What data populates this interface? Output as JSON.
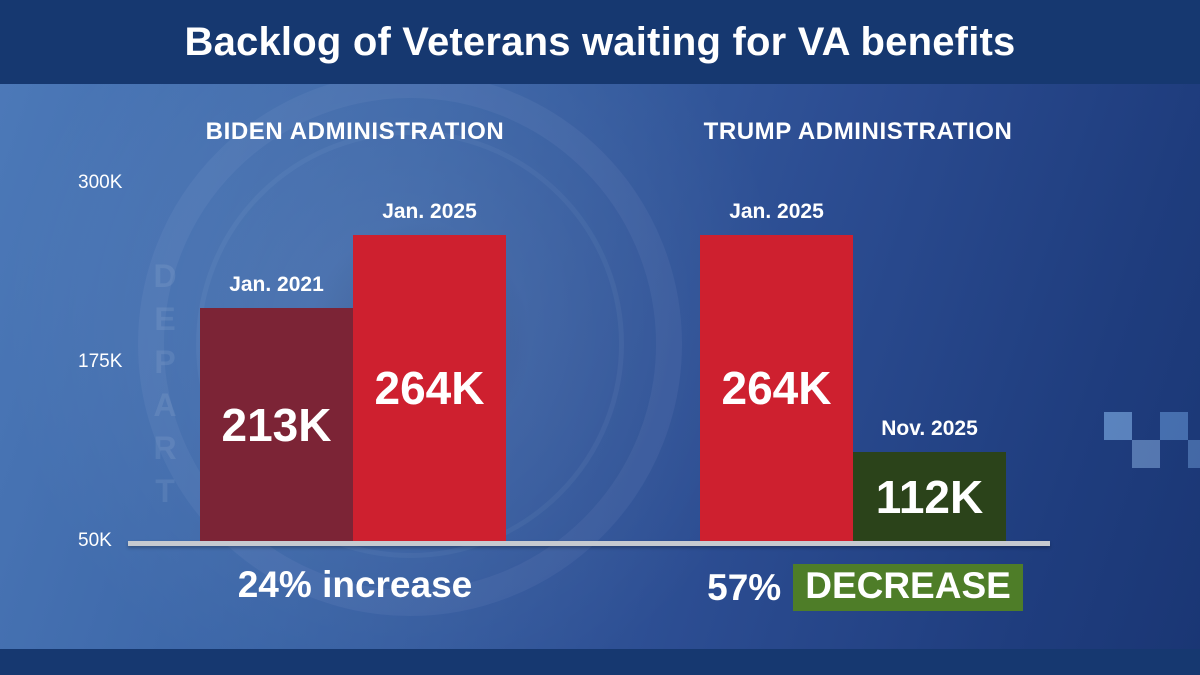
{
  "banner": {
    "title": "Backlog of Veterans waiting for VA benefits"
  },
  "chart_data": {
    "type": "bar",
    "title": "Backlog of Veterans waiting for VA benefits",
    "ylim": [
      50,
      300
    ],
    "grid": false,
    "y_ticks": [
      {
        "label": "300K",
        "value": 300
      },
      {
        "label": "175K",
        "value": 175
      },
      {
        "label": "50K",
        "value": 50
      }
    ],
    "groups": [
      {
        "label": "BIDEN ADMINISTRATION",
        "summary": "24% increase",
        "bars": [
          {
            "date": "Jan. 2021",
            "value": 213,
            "value_label": "213K",
            "color": "#7c2436"
          },
          {
            "date": "Jan. 2025",
            "value": 264,
            "value_label": "264K",
            "color": "#ce202f"
          }
        ]
      },
      {
        "label": "TRUMP ADMINISTRATION",
        "summary_prefix": "57%",
        "summary_highlight": "DECREASE",
        "highlight_bg": "#4e7d28",
        "bars": [
          {
            "date": "Jan. 2025",
            "value": 264,
            "value_label": "264K",
            "color": "#ce202f"
          },
          {
            "date": "Nov. 2025",
            "value": 112,
            "value_label": "112K",
            "color": "#2b431a"
          }
        ]
      }
    ]
  },
  "watermark": {
    "text": "DEPART"
  },
  "colors": {
    "banner": "#163870",
    "footer": "#163870",
    "baseline": "#c6cad0",
    "bright_red": "#ce202f",
    "dark_red": "#7c2436",
    "dark_green": "#2b431a",
    "highlight_green": "#4e7d28"
  }
}
